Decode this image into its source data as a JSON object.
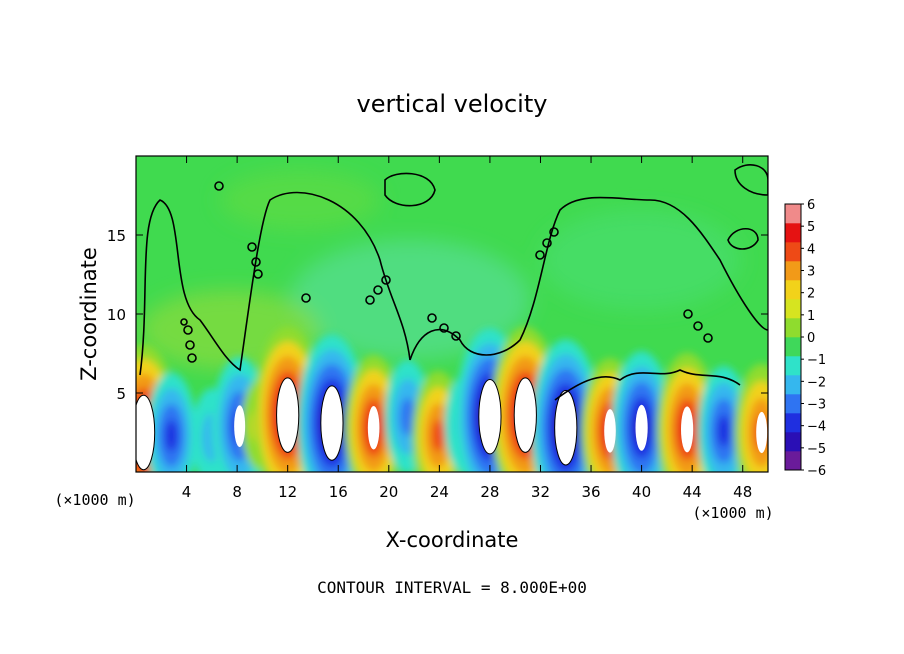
{
  "chart_data": {
    "type": "heatmap",
    "title": "vertical velocity",
    "xlabel": "X-coordinate",
    "ylabel": "Z-coordinate",
    "x_unit_label": "(×1000 m)",
    "xlim": [
      0,
      50
    ],
    "ylim": [
      0,
      20
    ],
    "x_ticks": [
      4,
      8,
      12,
      16,
      20,
      24,
      28,
      32,
      36,
      40,
      44,
      48
    ],
    "y_ticks": [
      5,
      10,
      15
    ],
    "footnote": "CONTOUR INTERVAL = 8.000E+00",
    "colorbar": {
      "levels": [
        6,
        5,
        4,
        3,
        2,
        1,
        0,
        -1,
        -2,
        -3,
        -4,
        -5,
        -6
      ],
      "colors": [
        "#6a1b9a",
        "#2a0fb5",
        "#1f2fe0",
        "#2f74f2",
        "#35b7ee",
        "#2fe2c9",
        "#3fd85a",
        "#8fdc2e",
        "#d6e420",
        "#f2d21a",
        "#f29a18",
        "#ee4a16",
        "#e51212",
        "#f08a8a"
      ]
    },
    "cells": [
      {
        "x": 0.6,
        "z": 2.5,
        "w": 8.0
      },
      {
        "x": 2.8,
        "z": 2.3,
        "w": -4.8
      },
      {
        "x": 6.0,
        "z": 2.2,
        "w": -3.0
      },
      {
        "x": 8.2,
        "z": 2.9,
        "w": -5.6
      },
      {
        "x": 9.8,
        "z": 3.0,
        "w": 2.5
      },
      {
        "x": 12.0,
        "z": 3.6,
        "w": 8.0
      },
      {
        "x": 15.5,
        "z": 3.1,
        "w": -8.0
      },
      {
        "x": 18.8,
        "z": 2.8,
        "w": 6.0
      },
      {
        "x": 21.5,
        "z": 3.5,
        "w": -4.0
      },
      {
        "x": 23.9,
        "z": 2.3,
        "w": 5.0
      },
      {
        "x": 26.0,
        "z": 3.0,
        "w": -3.0
      },
      {
        "x": 28.0,
        "z": 3.5,
        "w": -8.0
      },
      {
        "x": 30.8,
        "z": 3.6,
        "w": 8.0
      },
      {
        "x": 34.0,
        "z": 2.8,
        "w": -8.0
      },
      {
        "x": 37.5,
        "z": 2.6,
        "w": 6.0
      },
      {
        "x": 40.0,
        "z": 2.8,
        "w": -6.5
      },
      {
        "x": 43.6,
        "z": 2.7,
        "w": 6.5
      },
      {
        "x": 46.5,
        "z": 2.6,
        "w": -5.0
      },
      {
        "x": 49.5,
        "z": 2.5,
        "w": 5.5
      }
    ]
  }
}
